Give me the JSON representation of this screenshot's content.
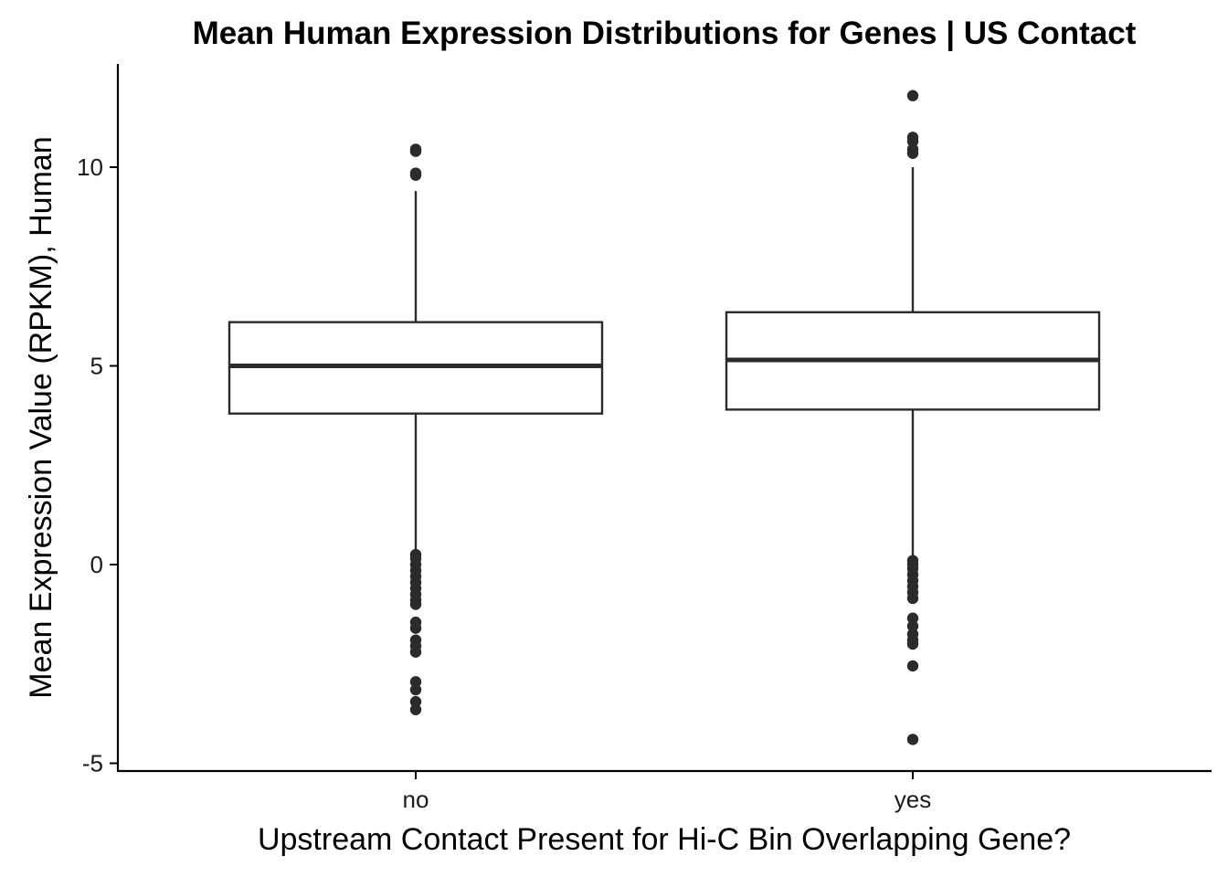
{
  "chart_data": {
    "type": "boxplot",
    "title": "Mean Human Expression Distributions for Genes | US Contact",
    "xlabel": "Upstream Contact Present for Hi-C Bin Overlapping Gene?",
    "ylabel": "Mean Expression Value (RPKM), Human",
    "ylim": [
      -5.2,
      12.6
    ],
    "yticks": [
      -5,
      0,
      5,
      10
    ],
    "ytick_labels": [
      "-5",
      "0",
      "5",
      "10"
    ],
    "grid": false,
    "legend": "none",
    "categories": [
      "no",
      "yes"
    ],
    "boxes": [
      {
        "category": "no",
        "whisker_low": 0.3,
        "q1": 3.8,
        "median": 5.0,
        "q3": 6.1,
        "whisker_high": 9.4,
        "outliers": [
          10.45,
          10.4,
          9.85,
          9.8,
          0.25,
          0.15,
          0.0,
          -0.15,
          -0.3,
          -0.45,
          -0.6,
          -0.75,
          -0.9,
          -1.0,
          -1.45,
          -1.6,
          -1.9,
          -2.05,
          -2.2,
          -2.95,
          -3.15,
          -3.45,
          -3.65
        ]
      },
      {
        "category": "yes",
        "whisker_low": 0.15,
        "q1": 3.9,
        "median": 5.15,
        "q3": 6.35,
        "whisker_high": 10.0,
        "outliers": [
          11.8,
          10.75,
          10.65,
          10.45,
          10.35,
          0.1,
          0.0,
          -0.1,
          -0.25,
          -0.4,
          -0.55,
          -0.7,
          -0.85,
          -1.35,
          -1.55,
          -1.75,
          -1.9,
          -2.0,
          -2.55,
          -4.4
        ]
      }
    ]
  }
}
